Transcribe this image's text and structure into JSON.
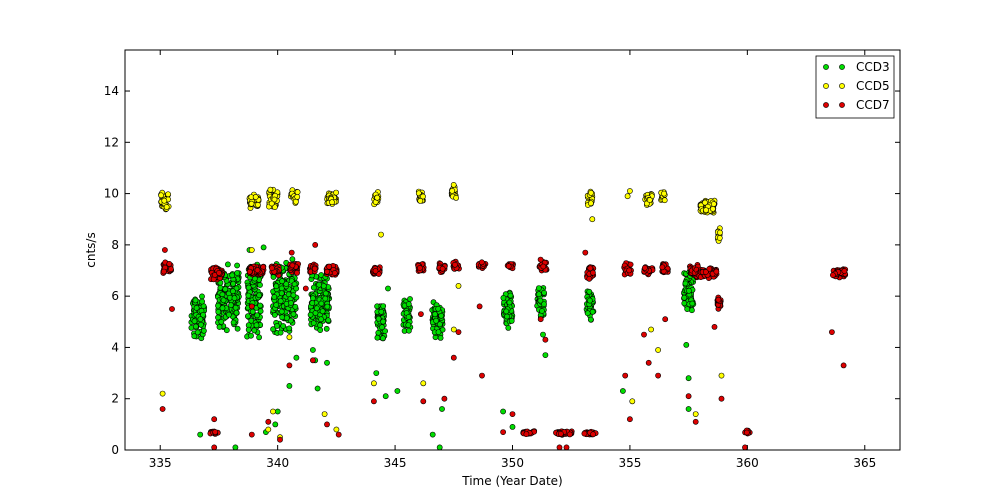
{
  "chart_data": {
    "type": "scatter",
    "title": "",
    "xlabel": "Time (Year Date)",
    "ylabel": "cnts/s",
    "xlim": [
      333.5,
      366.5
    ],
    "ylim": [
      0,
      15.6
    ],
    "xticks": [
      335,
      340,
      345,
      350,
      355,
      360,
      365
    ],
    "yticks": [
      0,
      2,
      4,
      6,
      8,
      10,
      12,
      14
    ],
    "grid": false,
    "legend_position": "top-right",
    "colors": {
      "CCD3": "#00dd00",
      "CCD5": "#ffff00",
      "CCD7": "#dd0000"
    },
    "series": [
      {
        "name": "CCD3",
        "clusters": [
          {
            "x": 336.6,
            "w": 0.55,
            "y": 5.2,
            "h": 1.0,
            "n": 90
          },
          {
            "x": 337.9,
            "w": 0.9,
            "y": 5.9,
            "h": 1.4,
            "n": 150
          },
          {
            "x": 339.0,
            "w": 0.6,
            "y": 5.9,
            "h": 1.6,
            "n": 110
          },
          {
            "x": 340.3,
            "w": 1.0,
            "y": 6.0,
            "h": 1.6,
            "n": 180
          },
          {
            "x": 341.8,
            "w": 0.8,
            "y": 5.8,
            "h": 1.2,
            "n": 130
          },
          {
            "x": 344.4,
            "w": 0.35,
            "y": 5.0,
            "h": 0.8,
            "n": 50
          },
          {
            "x": 345.5,
            "w": 0.3,
            "y": 5.3,
            "h": 0.7,
            "n": 45
          },
          {
            "x": 346.8,
            "w": 0.45,
            "y": 5.0,
            "h": 0.8,
            "n": 70
          },
          {
            "x": 349.8,
            "w": 0.4,
            "y": 5.4,
            "h": 0.8,
            "n": 60
          },
          {
            "x": 351.2,
            "w": 0.3,
            "y": 5.7,
            "h": 0.7,
            "n": 40
          },
          {
            "x": 353.3,
            "w": 0.3,
            "y": 5.7,
            "h": 0.7,
            "n": 45
          },
          {
            "x": 357.5,
            "w": 0.4,
            "y": 6.2,
            "h": 0.9,
            "n": 80
          }
        ],
        "points": [
          [
            336.7,
            0.6
          ],
          [
            338.2,
            0.1
          ],
          [
            339.5,
            0.7
          ],
          [
            339.9,
            1.0
          ],
          [
            340.0,
            1.5
          ],
          [
            340.5,
            2.5
          ],
          [
            340.8,
            3.6
          ],
          [
            341.6,
            3.5
          ],
          [
            341.7,
            2.4
          ],
          [
            342.1,
            3.4
          ],
          [
            344.2,
            3.0
          ],
          [
            344.6,
            2.1
          ],
          [
            345.1,
            2.3
          ],
          [
            346.6,
            0.6
          ],
          [
            346.9,
            0.1
          ],
          [
            347.0,
            1.6
          ],
          [
            349.6,
            1.5
          ],
          [
            350.0,
            0.9
          ],
          [
            351.4,
            3.7
          ],
          [
            354.7,
            2.3
          ],
          [
            357.5,
            2.8
          ],
          [
            357.5,
            1.6
          ],
          [
            357.4,
            4.1
          ],
          [
            341.5,
            3.9
          ],
          [
            338.8,
            7.8
          ],
          [
            339.4,
            7.9
          ],
          [
            344.7,
            6.3
          ],
          [
            351.3,
            4.5
          ]
        ]
      },
      {
        "name": "CCD5",
        "clusters": [
          {
            "x": 335.2,
            "w": 0.35,
            "y": 9.7,
            "h": 0.4,
            "n": 40
          },
          {
            "x": 339.0,
            "w": 0.4,
            "y": 9.7,
            "h": 0.3,
            "n": 40
          },
          {
            "x": 339.8,
            "w": 0.4,
            "y": 9.8,
            "h": 0.4,
            "n": 40
          },
          {
            "x": 340.7,
            "w": 0.3,
            "y": 9.9,
            "h": 0.3,
            "n": 25
          },
          {
            "x": 342.3,
            "w": 0.4,
            "y": 9.8,
            "h": 0.3,
            "n": 40
          },
          {
            "x": 344.2,
            "w": 0.2,
            "y": 9.8,
            "h": 0.3,
            "n": 20
          },
          {
            "x": 346.1,
            "w": 0.2,
            "y": 9.9,
            "h": 0.3,
            "n": 20
          },
          {
            "x": 347.5,
            "w": 0.2,
            "y": 10.1,
            "h": 0.3,
            "n": 20
          },
          {
            "x": 353.3,
            "w": 0.2,
            "y": 9.8,
            "h": 0.3,
            "n": 20
          },
          {
            "x": 355.8,
            "w": 0.3,
            "y": 9.8,
            "h": 0.3,
            "n": 25
          },
          {
            "x": 356.4,
            "w": 0.2,
            "y": 9.9,
            "h": 0.2,
            "n": 12
          },
          {
            "x": 358.3,
            "w": 0.6,
            "y": 9.5,
            "h": 0.3,
            "n": 70
          },
          {
            "x": 358.8,
            "w": 0.12,
            "y": 8.4,
            "h": 0.3,
            "n": 18
          }
        ],
        "points": [
          [
            335.1,
            2.2
          ],
          [
            338.9,
            7.8
          ],
          [
            339.6,
            0.8
          ],
          [
            339.8,
            1.5
          ],
          [
            340.1,
            0.5
          ],
          [
            340.5,
            4.4
          ],
          [
            342.0,
            1.4
          ],
          [
            342.5,
            0.8
          ],
          [
            344.1,
            2.6
          ],
          [
            344.4,
            8.4
          ],
          [
            346.2,
            2.6
          ],
          [
            347.5,
            4.7
          ],
          [
            347.7,
            6.4
          ],
          [
            353.4,
            9.0
          ],
          [
            354.9,
            9.9
          ],
          [
            355.1,
            1.9
          ],
          [
            355.9,
            4.7
          ],
          [
            356.2,
            3.9
          ],
          [
            357.8,
            1.4
          ],
          [
            358.9,
            2.9
          ],
          [
            355.0,
            10.1
          ]
        ]
      },
      {
        "name": "CCD7",
        "clusters": [
          {
            "x": 335.3,
            "w": 0.35,
            "y": 7.1,
            "h": 0.25,
            "n": 40
          },
          {
            "x": 337.4,
            "w": 0.5,
            "y": 6.9,
            "h": 0.3,
            "n": 60
          },
          {
            "x": 339.1,
            "w": 0.6,
            "y": 7.0,
            "h": 0.2,
            "n": 70
          },
          {
            "x": 339.9,
            "w": 0.35,
            "y": 7.0,
            "h": 0.2,
            "n": 40
          },
          {
            "x": 340.7,
            "w": 0.35,
            "y": 7.1,
            "h": 0.25,
            "n": 40
          },
          {
            "x": 341.5,
            "w": 0.25,
            "y": 7.1,
            "h": 0.2,
            "n": 25
          },
          {
            "x": 342.3,
            "w": 0.45,
            "y": 7.0,
            "h": 0.25,
            "n": 50
          },
          {
            "x": 344.2,
            "w": 0.3,
            "y": 7.0,
            "h": 0.2,
            "n": 25
          },
          {
            "x": 346.1,
            "w": 0.25,
            "y": 7.1,
            "h": 0.2,
            "n": 20
          },
          {
            "x": 347.0,
            "w": 0.25,
            "y": 7.1,
            "h": 0.2,
            "n": 20
          },
          {
            "x": 347.6,
            "w": 0.25,
            "y": 7.2,
            "h": 0.2,
            "n": 20
          },
          {
            "x": 348.7,
            "w": 0.3,
            "y": 7.2,
            "h": 0.15,
            "n": 15
          },
          {
            "x": 349.9,
            "w": 0.25,
            "y": 7.2,
            "h": 0.15,
            "n": 15
          },
          {
            "x": 351.3,
            "w": 0.3,
            "y": 7.2,
            "h": 0.25,
            "n": 25
          },
          {
            "x": 353.3,
            "w": 0.3,
            "y": 6.9,
            "h": 0.25,
            "n": 25
          },
          {
            "x": 354.9,
            "w": 0.3,
            "y": 7.0,
            "h": 0.3,
            "n": 30
          },
          {
            "x": 355.8,
            "w": 0.4,
            "y": 7.0,
            "h": 0.2,
            "n": 25
          },
          {
            "x": 356.5,
            "w": 0.25,
            "y": 7.1,
            "h": 0.2,
            "n": 20
          },
          {
            "x": 357.7,
            "w": 0.4,
            "y": 7.0,
            "h": 0.3,
            "n": 40
          },
          {
            "x": 358.3,
            "w": 0.8,
            "y": 6.9,
            "h": 0.2,
            "n": 70
          },
          {
            "x": 358.8,
            "w": 0.15,
            "y": 5.7,
            "h": 0.3,
            "n": 20
          },
          {
            "x": 363.9,
            "w": 0.55,
            "y": 6.9,
            "h": 0.2,
            "n": 45
          },
          {
            "x": 337.3,
            "w": 0.35,
            "y": 0.7,
            "h": 0.08,
            "n": 15
          },
          {
            "x": 350.7,
            "w": 0.5,
            "y": 0.68,
            "h": 0.08,
            "n": 22
          },
          {
            "x": 352.2,
            "w": 0.7,
            "y": 0.66,
            "h": 0.08,
            "n": 35
          },
          {
            "x": 353.3,
            "w": 0.5,
            "y": 0.66,
            "h": 0.08,
            "n": 25
          },
          {
            "x": 360.0,
            "w": 0.2,
            "y": 0.7,
            "h": 0.08,
            "n": 10
          }
        ],
        "points": [
          [
            335.1,
            1.6
          ],
          [
            335.2,
            7.8
          ],
          [
            335.5,
            5.5
          ],
          [
            337.3,
            1.2
          ],
          [
            337.3,
            0.1
          ],
          [
            338.9,
            5.6
          ],
          [
            338.9,
            0.6
          ],
          [
            339.6,
            1.1
          ],
          [
            340.1,
            0.4
          ],
          [
            340.5,
            3.3
          ],
          [
            340.6,
            7.7
          ],
          [
            341.2,
            6.3
          ],
          [
            341.5,
            3.5
          ],
          [
            341.6,
            8.0
          ],
          [
            342.1,
            1.0
          ],
          [
            342.6,
            0.6
          ],
          [
            344.1,
            1.9
          ],
          [
            346.1,
            5.3
          ],
          [
            346.2,
            1.9
          ],
          [
            347.1,
            2.0
          ],
          [
            347.5,
            3.6
          ],
          [
            347.7,
            4.6
          ],
          [
            348.7,
            2.9
          ],
          [
            348.6,
            5.6
          ],
          [
            349.6,
            0.7
          ],
          [
            350.0,
            1.4
          ],
          [
            351.4,
            4.3
          ],
          [
            351.2,
            5.1
          ],
          [
            352.0,
            0.1
          ],
          [
            352.3,
            0.1
          ],
          [
            353.1,
            7.7
          ],
          [
            354.8,
            2.9
          ],
          [
            355.0,
            1.2
          ],
          [
            355.6,
            4.5
          ],
          [
            355.8,
            3.4
          ],
          [
            356.2,
            2.9
          ],
          [
            356.5,
            5.1
          ],
          [
            357.5,
            2.1
          ],
          [
            357.8,
            1.1
          ],
          [
            358.6,
            4.8
          ],
          [
            358.9,
            2.0
          ],
          [
            359.9,
            0.1
          ],
          [
            363.6,
            4.6
          ],
          [
            364.1,
            3.3
          ]
        ]
      }
    ]
  }
}
